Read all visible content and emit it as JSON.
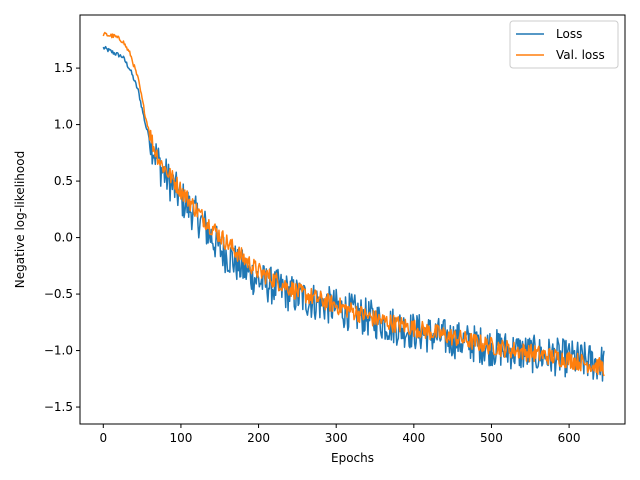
{
  "chart_data": {
    "type": "line",
    "title": "",
    "xlabel": "Epochs",
    "ylabel": "Negative log-likelihood",
    "xlim": [
      -30,
      672
    ],
    "ylim": [
      -1.65,
      1.97
    ],
    "xticks": [
      0,
      100,
      200,
      300,
      400,
      500,
      600
    ],
    "yticks": [
      -1.5,
      -1.0,
      -0.5,
      0.0,
      0.5,
      1.0,
      1.5
    ],
    "xtick_labels": [
      "0",
      "100",
      "200",
      "300",
      "400",
      "500",
      "600"
    ],
    "ytick_labels": [
      "−1.5",
      "−1.0",
      "−0.5",
      "0.0",
      "0.5",
      "1.0",
      "1.5"
    ],
    "grid": false,
    "legend_position": "upper right",
    "x_max": 645,
    "series": [
      {
        "name": "Loss",
        "color": "#1f77b4",
        "noisy": true,
        "anchors": [
          [
            0,
            1.68
          ],
          [
            15,
            1.63
          ],
          [
            25,
            1.6
          ],
          [
            35,
            1.48
          ],
          [
            45,
            1.3
          ],
          [
            55,
            0.98
          ],
          [
            65,
            0.78
          ],
          [
            75,
            0.6
          ],
          [
            100,
            0.35
          ],
          [
            125,
            0.15
          ],
          [
            150,
            -0.1
          ],
          [
            175,
            -0.25
          ],
          [
            200,
            -0.38
          ],
          [
            250,
            -0.52
          ],
          [
            300,
            -0.62
          ],
          [
            350,
            -0.73
          ],
          [
            400,
            -0.83
          ],
          [
            450,
            -0.9
          ],
          [
            500,
            -0.97
          ],
          [
            550,
            -1.03
          ],
          [
            600,
            -1.07
          ],
          [
            645,
            -1.12
          ]
        ]
      },
      {
        "name": "Val. loss",
        "color": "#ff7f0e",
        "noisy": true,
        "anchors": [
          [
            0,
            1.8
          ],
          [
            15,
            1.78
          ],
          [
            25,
            1.74
          ],
          [
            35,
            1.62
          ],
          [
            45,
            1.4
          ],
          [
            55,
            1.05
          ],
          [
            65,
            0.8
          ],
          [
            75,
            0.65
          ],
          [
            100,
            0.42
          ],
          [
            125,
            0.2
          ],
          [
            150,
            0.02
          ],
          [
            175,
            -0.15
          ],
          [
            200,
            -0.3
          ],
          [
            250,
            -0.48
          ],
          [
            300,
            -0.6
          ],
          [
            350,
            -0.72
          ],
          [
            400,
            -0.8
          ],
          [
            450,
            -0.88
          ],
          [
            500,
            -0.96
          ],
          [
            550,
            -1.02
          ],
          [
            600,
            -1.08
          ],
          [
            645,
            -1.15
          ]
        ]
      }
    ]
  }
}
